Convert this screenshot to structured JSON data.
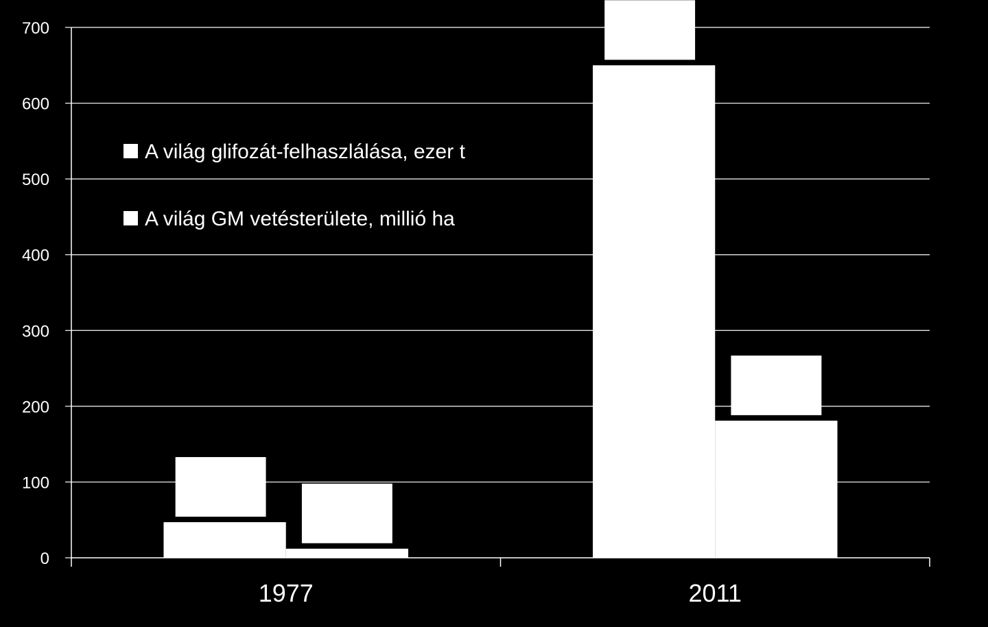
{
  "chart_data": {
    "type": "bar",
    "title": "",
    "xlabel": "",
    "ylabel": "",
    "categories": [
      "1977",
      "2011"
    ],
    "series": [
      {
        "name": "A világ glifozát-felhaszlálása, ezer t",
        "values": [
          47,
          650
        ],
        "color": "#ffffff"
      },
      {
        "name": "A világ GM vetésterülete, millió ha",
        "values": [
          12,
          181
        ],
        "color": "#ffffff"
      }
    ],
    "ylim": [
      0,
      700
    ],
    "yticks": [
      0,
      100,
      200,
      300,
      400,
      500,
      600,
      700
    ],
    "grid": true,
    "legend_position": "top-left",
    "colors": {
      "background": "#000000",
      "foreground": "#ffffff"
    }
  }
}
